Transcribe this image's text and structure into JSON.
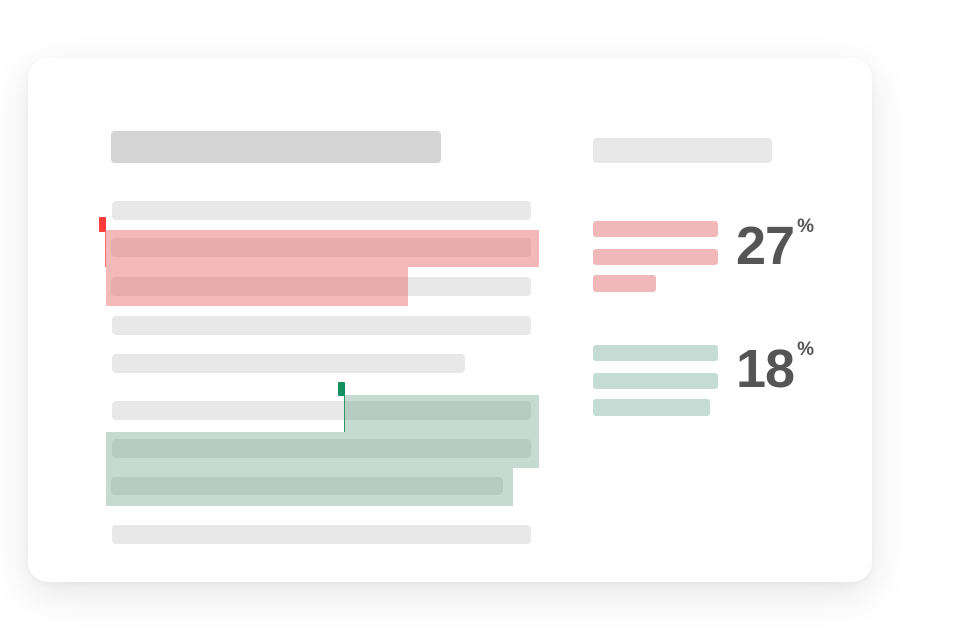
{
  "colors": {
    "match_red": "#f0b8b8",
    "match_green": "#c5dcd4",
    "flag_red": "#ff3b3b",
    "flag_green": "#129060",
    "placeholder": "#e8e8e8",
    "title_placeholder": "#d4d4d4",
    "score_text": "#555555"
  },
  "results": [
    {
      "value": "27",
      "unit": "%",
      "color": "red"
    },
    {
      "value": "18",
      "unit": "%",
      "color": "green"
    }
  ]
}
